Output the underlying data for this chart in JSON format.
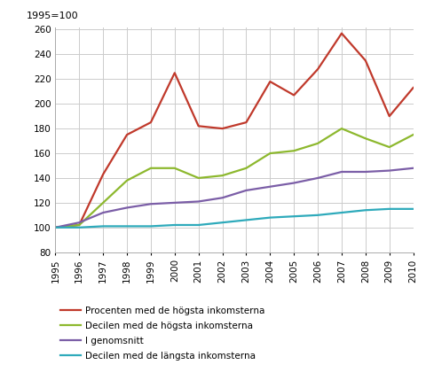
{
  "years": [
    1995,
    1996,
    1997,
    1998,
    1999,
    2000,
    2001,
    2002,
    2003,
    2004,
    2005,
    2006,
    2007,
    2008,
    2009,
    2010
  ],
  "procenten": [
    100,
    102,
    143,
    175,
    185,
    225,
    182,
    180,
    185,
    218,
    207,
    228,
    257,
    235,
    190,
    213
  ],
  "decilen_hogsta": [
    100,
    102,
    120,
    138,
    148,
    148,
    140,
    142,
    148,
    160,
    162,
    168,
    180,
    172,
    165,
    175
  ],
  "genomsnitt": [
    100,
    104,
    112,
    116,
    119,
    120,
    121,
    124,
    130,
    133,
    136,
    140,
    145,
    145,
    146,
    148
  ],
  "decilen_langsta": [
    100,
    100,
    101,
    101,
    101,
    102,
    102,
    104,
    106,
    108,
    109,
    110,
    112,
    114,
    115,
    115
  ],
  "colors": {
    "procenten": "#c0392b",
    "decilen_hogsta": "#8db82e",
    "genomsnitt": "#7b5ea7",
    "decilen_langsta": "#2eaabb"
  },
  "labels": {
    "procenten": "Procenten med de högsta inkomsterna",
    "decilen_hogsta": "Decilen med de högsta inkomsterna",
    "genomsnitt": "I genomsnitt",
    "decilen_langsta": "Decilen med de längsta inkomsterna"
  },
  "ylabel_top": "1995=100",
  "ylim": [
    80,
    262
  ],
  "yticks": [
    80,
    100,
    120,
    140,
    160,
    180,
    200,
    220,
    240,
    260
  ],
  "background_color": "#ffffff",
  "grid_color": "#cccccc",
  "linewidth": 1.6
}
